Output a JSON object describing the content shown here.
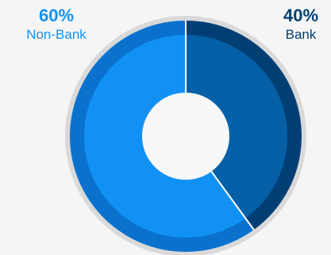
{
  "chart_data": {
    "type": "pie",
    "variant": "donut",
    "legend_placement": "top",
    "slices": [
      {
        "label": "Non-Bank",
        "value": 60,
        "display": "60%",
        "color": "#1191f4",
        "shade": "#0a72cd"
      },
      {
        "label": "Bank",
        "value": 40,
        "display": "40%",
        "color": "#0560a7",
        "shade": "#003f74"
      }
    ]
  },
  "colors": {
    "ring": "#d9d9d9",
    "hole": "#f7f7f7",
    "divider": "#ffffff"
  }
}
